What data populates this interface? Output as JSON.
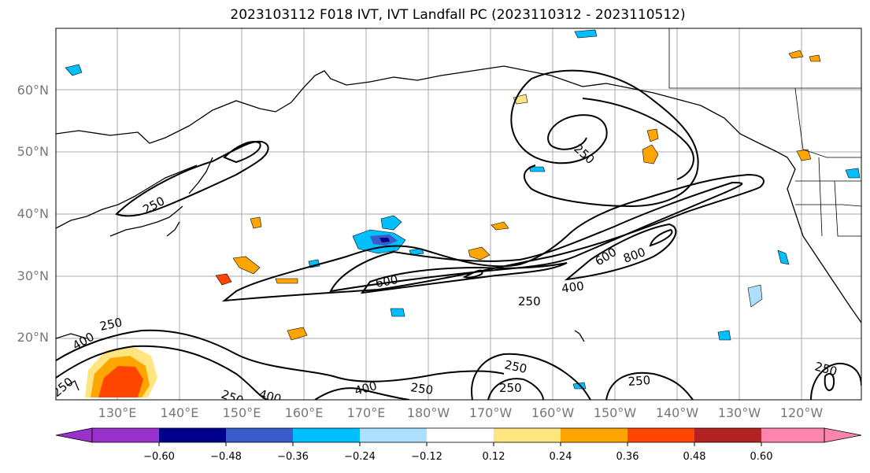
{
  "title": "2023103112 F018 IVT, IVT Landfall PC (2023110312 - 2023110512)",
  "map": {
    "lat_labels": [
      "60°N",
      "50°N",
      "40°N",
      "30°N",
      "20°N"
    ],
    "lon_labels": [
      "130°E",
      "140°E",
      "150°E",
      "160°E",
      "170°E",
      "180°W",
      "170°W",
      "160°W",
      "150°W",
      "140°W",
      "130°W",
      "120°W"
    ],
    "contour_labels": [
      "250",
      "250",
      "250",
      "600",
      "800",
      "400",
      "600",
      "250",
      "250",
      "400",
      "400",
      "250",
      "250",
      "250",
      "250",
      "250",
      "250",
      "400"
    ],
    "grid": true
  },
  "colorbar": {
    "ticks": [
      "−0.60",
      "−0.48",
      "−0.36",
      "−0.24",
      "−0.12",
      "0.12",
      "0.24",
      "0.36",
      "0.48",
      "0.60"
    ],
    "colors": [
      "#9932CC",
      "#00008B",
      "#3A5BCB",
      "#00BFFF",
      "#ADDFFF",
      "#FFFFFF",
      "#FFE57F",
      "#FFA500",
      "#FF4500",
      "#B22222",
      "#FF85AE"
    ]
  }
}
